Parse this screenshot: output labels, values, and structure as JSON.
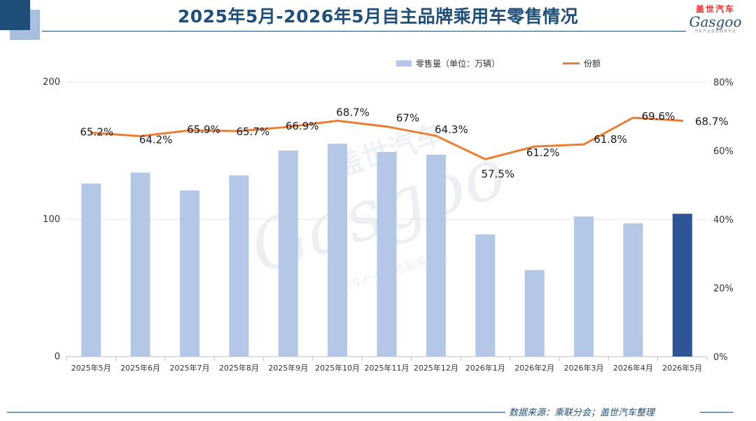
{
  "title": "2025年5月-2026年5月自主品牌乘用车零售情况",
  "brand": {
    "cn": "盖世汽车",
    "en": "Gasgoo",
    "sub": "汽车产业信息服务平台"
  },
  "watermark": {
    "cn": "盖世汽车",
    "en": "Gasgoo",
    "sub": "汽车产业信息服务平台"
  },
  "footer": {
    "source": "数据来源：乘联分会；盖世汽车整理"
  },
  "colors": {
    "bar": "#b4c7e7",
    "bar_highlight": "#2f5597",
    "line": "#ed7d31",
    "title": "#1f4e79"
  },
  "chart_data": {
    "type": "bar",
    "categories": [
      "2025年5月",
      "2025年6月",
      "2025年7月",
      "2025年8月",
      "2025年9月",
      "2025年10月",
      "2025年11月",
      "2025年12月",
      "2026年1月",
      "2026年2月",
      "2026年3月",
      "2026年4月",
      "2026年5月"
    ],
    "series": [
      {
        "name": "零售量（单位：万辆）",
        "type": "bar",
        "axis": "left",
        "values": [
          126,
          134,
          121,
          132,
          150,
          155,
          149,
          147,
          89,
          63,
          102,
          97,
          104
        ]
      },
      {
        "name": "份额",
        "type": "line",
        "axis": "right",
        "values": [
          65.2,
          64.2,
          65.9,
          65.7,
          66.9,
          68.7,
          67,
          64.3,
          57.5,
          61.2,
          61.8,
          69.6,
          68.7
        ],
        "labels": [
          "65.2%",
          "64.2%",
          "65.9%",
          "65.7%",
          "66.9%",
          "68.7%",
          "67%",
          "64.3%",
          "57.5%",
          "61.2%",
          "61.8%",
          "69.6%",
          "68.7%"
        ]
      }
    ],
    "highlight_index": 12,
    "y_left": {
      "min": 0,
      "max": 200,
      "ticks": [
        "0",
        "100",
        "200"
      ],
      "tick_values": [
        0,
        100,
        200
      ]
    },
    "y_right": {
      "min": 0,
      "max": 80,
      "ticks": [
        "0%",
        "20%",
        "40%",
        "60%",
        "80%"
      ],
      "tick_values": [
        0,
        20,
        40,
        60,
        80
      ]
    },
    "grid": true,
    "legend_position": "top"
  }
}
